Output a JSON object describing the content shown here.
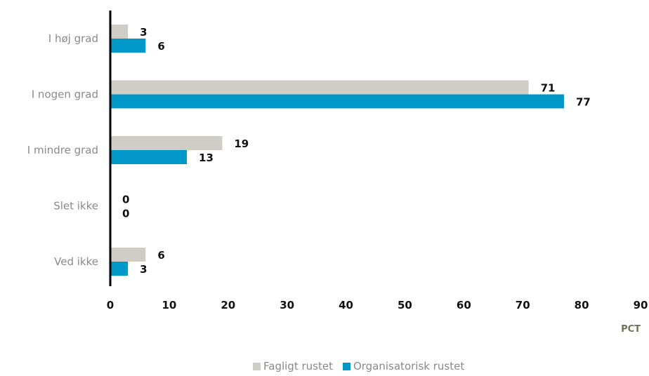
{
  "chart_data": {
    "type": "bar",
    "orientation": "horizontal",
    "categories": [
      "I høj grad",
      "I nogen grad",
      "I mindre grad",
      "Slet ikke",
      "Ved ikke"
    ],
    "series": [
      {
        "name": "Fagligt rustet",
        "values": [
          3,
          71,
          19,
          0,
          6
        ],
        "color": "#cfcdc6"
      },
      {
        "name": "Organisatorisk rustet",
        "values": [
          6,
          77,
          13,
          0,
          3
        ],
        "color": "#0098c8"
      }
    ],
    "xlim": [
      0,
      90
    ],
    "xticks": [
      "0",
      "10",
      "20",
      "30",
      "40",
      "50",
      "60",
      "70",
      "80",
      "90"
    ],
    "xlabel": "PCT",
    "legend_position": "bottom",
    "grid": false
  }
}
